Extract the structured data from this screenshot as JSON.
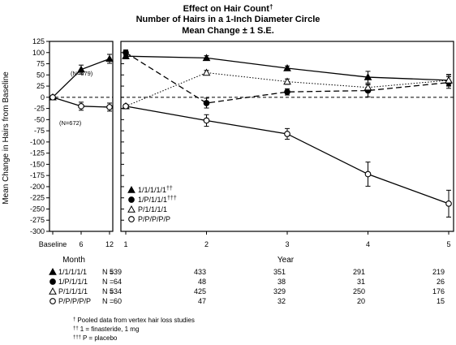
{
  "chart_data": {
    "type": "line",
    "title": "Effect on Hair Count",
    "title_mark": "†",
    "subtitle": "Number of Hairs in a 1-Inch Diameter Circle",
    "subtitle2": "Mean Change ± 1 S.E.",
    "ylabel": "Mean Change in Hairs from Baseline",
    "ylim": [
      -300,
      125
    ],
    "yticks": [
      125,
      100,
      75,
      50,
      25,
      0,
      -25,
      -50,
      -75,
      -100,
      -125,
      -150,
      -175,
      -200,
      -225,
      -250,
      -275,
      -300
    ],
    "grid": false,
    "legend_position": "lower-left of right panel",
    "panels": [
      {
        "name": "month",
        "xlabel": "Month",
        "xticks": [
          "Baseline",
          "6",
          "12"
        ],
        "x": [
          0,
          6,
          12
        ],
        "series": [
          {
            "key": "fin",
            "values": [
              0,
              62,
              86
            ],
            "errors": [
              0,
              10,
              10
            ],
            "marker": "triangle-filled",
            "dash": "solid",
            "annotation": "(N=679)"
          },
          {
            "key": "plc",
            "values": [
              0,
              -20,
              -22
            ],
            "errors": [
              0,
              9,
              9
            ],
            "marker": "circle-open",
            "dash": "solid",
            "annotation": "(N=672)"
          }
        ]
      },
      {
        "name": "year",
        "xlabel": "Year",
        "xticks": [
          "1",
          "2",
          "3",
          "4",
          "5"
        ],
        "x": [
          1,
          2,
          3,
          4,
          5
        ],
        "series": [
          {
            "key": "s1",
            "label": "1/1/1/1/1",
            "mark": "††",
            "values": [
              92,
              88,
              65,
              45,
              38
            ],
            "errors": [
              6,
              5,
              5,
              13,
              13
            ],
            "marker": "triangle-filled",
            "dash": "solid"
          },
          {
            "key": "s2",
            "label": "1/P/1/1/1",
            "mark": "†††",
            "values": [
              100,
              -13,
              12,
              15,
              33
            ],
            "errors": [
              6,
              11,
              7,
              14,
              13
            ],
            "marker": "circle-filled",
            "dash": "dash"
          },
          {
            "key": "s3",
            "label": "P/1/1/1/1",
            "mark": "",
            "values": [
              -20,
              55,
              35,
              22,
              38
            ],
            "errors": [
              4,
              5,
              6,
              6,
              12
            ],
            "marker": "triangle-open",
            "dash": "dot"
          },
          {
            "key": "s4",
            "label": "P/P/P/P/P",
            "mark": "",
            "values": [
              -20,
              -52,
              -82,
              -172,
              -238
            ],
            "errors": [
              4,
              13,
              12,
              27,
              30
            ],
            "marker": "circle-open",
            "dash": "solid"
          }
        ]
      }
    ],
    "n_table": {
      "rows": [
        {
          "marker": "triangle-filled",
          "label": "1/1/1/1/1",
          "n_label": "N =",
          "values": [
            "539",
            "433",
            "351",
            "291",
            "219"
          ]
        },
        {
          "marker": "circle-filled",
          "label": "1/P/1/1/1",
          "n_label": "N =",
          "values": [
            "64",
            "48",
            "38",
            "31",
            "26"
          ]
        },
        {
          "marker": "triangle-open",
          "label": "P/1/1/1/1",
          "n_label": "N =",
          "values": [
            "534",
            "425",
            "329",
            "250",
            "176"
          ]
        },
        {
          "marker": "circle-open",
          "label": "P/P/P/P/P",
          "n_label": "N =",
          "values": [
            "60",
            "47",
            "32",
            "20",
            "15"
          ]
        }
      ]
    },
    "footnotes": [
      {
        "mark": "†",
        "text": "Pooled data from vertex hair loss studies"
      },
      {
        "mark": "††",
        "text": "1 = finasteride, 1 mg"
      },
      {
        "mark": "†††",
        "text": "P = placebo"
      }
    ]
  }
}
